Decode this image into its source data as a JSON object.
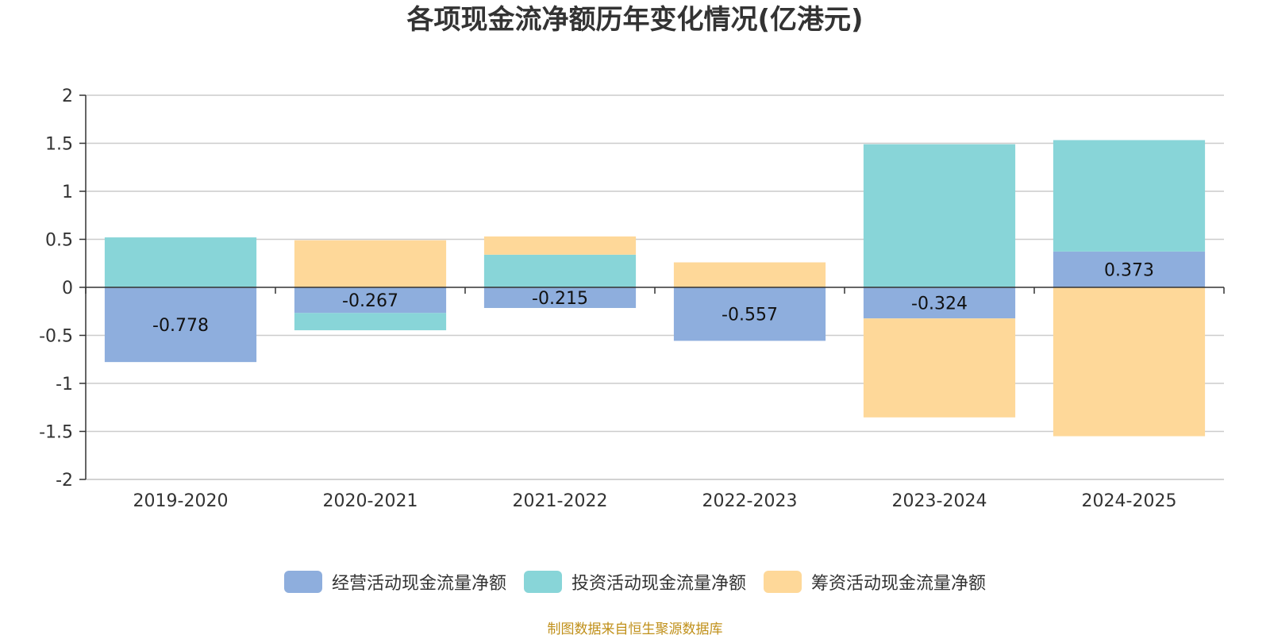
{
  "chart_data": {
    "type": "bar",
    "stacked": true,
    "title": "各项现金流净额历年变化情况(亿港元)",
    "categories": [
      "2019-2020",
      "2020-2021",
      "2021-2022",
      "2022-2023",
      "2023-2024",
      "2024-2025"
    ],
    "series": [
      {
        "name": "经营活动现金流量净额",
        "color": "#8eaedd",
        "values": [
          -0.778,
          -0.267,
          -0.215,
          -0.557,
          -0.324,
          0.373
        ],
        "labels": [
          "-0.778",
          "-0.267",
          "-0.215",
          "-0.557",
          "-0.324",
          "0.373"
        ]
      },
      {
        "name": "投资活动现金流量净额",
        "color": "#88d5d8",
        "values": [
          0.52,
          -0.18,
          0.34,
          0.0,
          1.49,
          1.16
        ]
      },
      {
        "name": "筹资活动现金流量净额",
        "color": "#fed899",
        "values": [
          0.0,
          0.49,
          0.19,
          0.26,
          -1.03,
          -1.55
        ]
      }
    ],
    "ylim": [
      -2,
      2
    ],
    "yticks": [
      2,
      1.5,
      1,
      0.5,
      0,
      -0.5,
      -1,
      -1.5,
      -2
    ],
    "ytick_labels": [
      "2",
      "1.5",
      "1",
      "0.5",
      "0",
      "-0.5",
      "-1",
      "-1.5",
      "-2"
    ],
    "grid": true,
    "legend_position": "bottom-center",
    "xlabel": "",
    "ylabel": ""
  },
  "source_note": "制图数据来自恒生聚源数据库"
}
